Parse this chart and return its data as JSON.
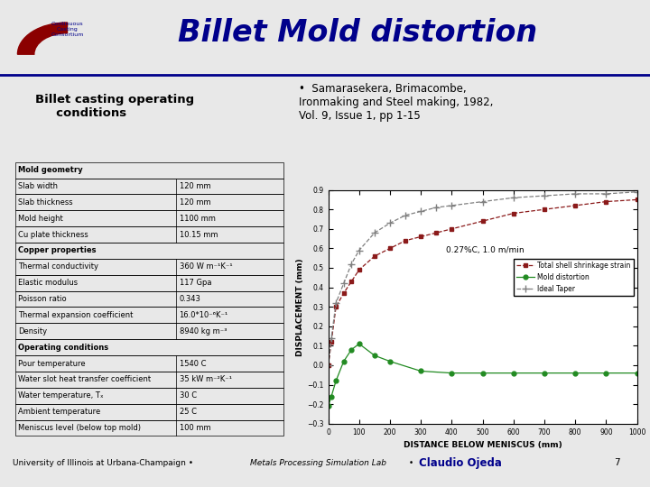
{
  "title": "Billet Mold distortion",
  "bullet_text": "Samarasekera, Brimacombe,\nIronmaking and Steel making, 1982,\nVol. 9, Issue 1, pp 1-15",
  "table_rows": [
    [
      "Mold geometry",
      "",
      true
    ],
    [
      "Slab width",
      "120 mm",
      false
    ],
    [
      "Slab thickness",
      "120 mm",
      false
    ],
    [
      "Mold height",
      "1100 mm",
      false
    ],
    [
      "Cu plate thickness",
      "10.15 mm",
      false
    ],
    [
      "Copper properties",
      "",
      true
    ],
    [
      "Thermal conductivity",
      "360 W m⁻¹K⁻¹",
      false
    ],
    [
      "Elastic modulus",
      "117 Gpa",
      false
    ],
    [
      "Poisson ratio",
      "0.343",
      false
    ],
    [
      "Thermal expansion coefficient",
      "16.0*10⁻⁶K⁻¹",
      false
    ],
    [
      "Density",
      "8940 kg m⁻³",
      false
    ],
    [
      "Operating conditions",
      "",
      true
    ],
    [
      "Pour temperature",
      "1540 C",
      false
    ],
    [
      "Water slot heat transfer coefficient",
      "35 kW m⁻²K⁻¹",
      false
    ],
    [
      "Water temperature, Tₓ",
      "30 C",
      false
    ],
    [
      "Ambient temperature",
      "25 C",
      false
    ],
    [
      "Meniscus level (below top mold)",
      "100 mm",
      false
    ]
  ],
  "annotation": "0.27%C, 1.0 m/min",
  "xlabel": "DISTANCE BELOW MENISCUS (mm)",
  "ylabel": "DISPLACEMENT (mm)",
  "xlim": [
    0,
    1000
  ],
  "ylim": [
    -0.3,
    0.9
  ],
  "yticks": [
    -0.3,
    -0.2,
    -0.1,
    0.0,
    0.1,
    0.2,
    0.3,
    0.4,
    0.5,
    0.6,
    0.7,
    0.8,
    0.9
  ],
  "xticks": [
    0,
    100,
    200,
    300,
    400,
    500,
    600,
    700,
    800,
    900,
    1000
  ],
  "line1_color": "#8B1A1A",
  "line2_color": "#228B22",
  "line3_color": "#808080",
  "total_shell_x": [
    0,
    10,
    25,
    50,
    75,
    100,
    150,
    200,
    250,
    300,
    350,
    400,
    500,
    600,
    700,
    800,
    900,
    1000
  ],
  "total_shell_y": [
    0.0,
    0.12,
    0.3,
    0.37,
    0.43,
    0.49,
    0.56,
    0.6,
    0.64,
    0.66,
    0.68,
    0.7,
    0.74,
    0.78,
    0.8,
    0.82,
    0.84,
    0.85
  ],
  "mold_dist_x": [
    0,
    10,
    25,
    50,
    75,
    100,
    150,
    200,
    300,
    400,
    500,
    600,
    700,
    800,
    900,
    1000
  ],
  "mold_dist_y": [
    -0.21,
    -0.16,
    -0.08,
    0.02,
    0.08,
    0.11,
    0.05,
    0.02,
    -0.03,
    -0.04,
    -0.04,
    -0.04,
    -0.04,
    -0.04,
    -0.04,
    -0.04
  ],
  "ideal_taper_x": [
    0,
    10,
    25,
    50,
    75,
    100,
    150,
    200,
    250,
    300,
    350,
    400,
    500,
    600,
    700,
    800,
    900,
    1000
  ],
  "ideal_taper_y": [
    0.0,
    0.14,
    0.32,
    0.42,
    0.52,
    0.59,
    0.68,
    0.73,
    0.77,
    0.79,
    0.81,
    0.82,
    0.84,
    0.86,
    0.87,
    0.88,
    0.88,
    0.89
  ],
  "slide_bg": "#e8e8e8",
  "title_bg": "white",
  "table_col_split": 0.6
}
